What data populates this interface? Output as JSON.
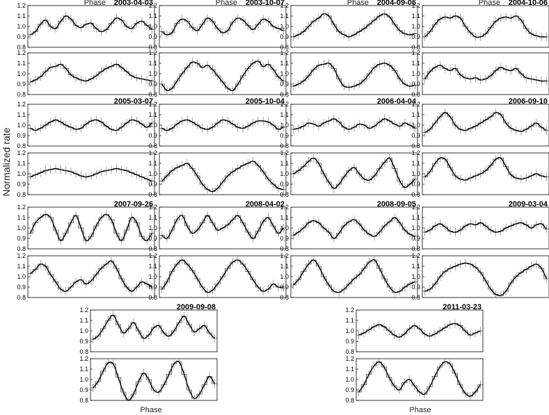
{
  "figure": {
    "ylabel": "Normalized rate",
    "xlabel": "Phase"
  },
  "chart_data": {
    "type": "line",
    "ylabel": "Normalized rate",
    "xlabel": "Phase",
    "ylim_top": [
      0.8,
      1.2
    ],
    "ylim_bottom": [
      0.8,
      1.2
    ],
    "yticks": [
      0.8,
      0.9,
      1.0,
      1.1,
      1.2
    ],
    "panels": [
      {
        "date": "2003-04-03",
        "show_phase": true,
        "top": [
          0.92,
          0.95,
          1.02,
          1.06,
          1.0,
          0.98,
          1.05,
          1.1,
          1.07,
          1.01,
          0.99,
          1.02,
          1.03,
          0.98,
          0.95,
          0.97,
          1.03,
          1.08,
          1.06,
          1.0,
          0.98,
          1.03,
          1.05,
          1.01,
          0.97
        ],
        "bottom": [
          0.92,
          0.94,
          0.97,
          1.02,
          1.06,
          1.07,
          1.09,
          1.05,
          0.99,
          0.96,
          0.94,
          0.93,
          0.95,
          0.98,
          1.02,
          1.05,
          1.07,
          1.09,
          1.06,
          1.02,
          0.98,
          0.96,
          0.95,
          0.94,
          0.93
        ]
      },
      {
        "date": "2003-10-07",
        "show_phase": true,
        "top": [
          0.95,
          0.92,
          0.94,
          1.03,
          1.07,
          1.05,
          0.99,
          0.96,
          1.02,
          1.08,
          1.05,
          0.98,
          0.94,
          0.96,
          1.04,
          1.08,
          1.06,
          1.01,
          0.97,
          1.02,
          1.07,
          1.05,
          1.0,
          0.98,
          0.96
        ],
        "bottom": [
          0.9,
          0.84,
          0.86,
          0.93,
          1.0,
          1.06,
          1.11,
          1.1,
          1.06,
          1.08,
          1.04,
          0.98,
          0.92,
          0.86,
          0.84,
          0.9,
          0.98,
          1.05,
          1.1,
          1.12,
          1.07,
          1.09,
          1.04,
          0.97,
          0.93
        ]
      },
      {
        "date": "2004-09-06",
        "show_phase": true,
        "top": [
          0.9,
          0.92,
          0.95,
          1.0,
          1.05,
          1.08,
          1.12,
          1.1,
          1.02,
          0.95,
          0.92,
          0.9,
          0.92,
          0.95,
          0.98,
          1.02,
          1.06,
          1.1,
          1.12,
          1.09,
          1.02,
          0.96,
          0.93,
          0.92,
          0.93
        ],
        "bottom": [
          0.88,
          0.9,
          0.93,
          0.98,
          1.04,
          1.08,
          1.09,
          1.1,
          1.05,
          0.95,
          0.88,
          0.87,
          0.88,
          0.9,
          0.94,
          1.0,
          1.06,
          1.09,
          1.1,
          1.08,
          1.03,
          0.95,
          0.9,
          0.88,
          0.89
        ]
      },
      {
        "date": "2004-10-06",
        "show_phase": true,
        "top": [
          0.9,
          0.95,
          1.02,
          1.07,
          1.09,
          1.08,
          1.1,
          1.08,
          1.0,
          0.94,
          0.9,
          0.9,
          0.93,
          0.99,
          1.05,
          1.08,
          1.09,
          1.08,
          1.1,
          1.06,
          0.98,
          0.93,
          0.91,
          0.9,
          0.9
        ],
        "bottom": [
          0.95,
          1.02,
          1.06,
          1.08,
          1.05,
          1.03,
          1.05,
          0.99,
          0.96,
          0.95,
          0.96,
          0.94,
          0.95,
          0.98,
          1.03,
          1.06,
          1.04,
          1.03,
          1.05,
          1.0,
          0.96,
          0.95,
          0.94,
          0.93,
          0.93
        ]
      },
      {
        "date": "2005-03-07",
        "show_phase": false,
        "top": [
          0.97,
          0.95,
          0.97,
          1.0,
          1.03,
          1.05,
          1.03,
          1.0,
          0.98,
          0.96,
          0.97,
          1.01,
          1.04,
          1.05,
          1.03,
          0.99,
          0.96,
          0.95,
          0.98,
          1.02,
          1.05,
          1.04,
          1.01,
          0.98,
          1.02
        ],
        "bottom": [
          0.97,
          0.99,
          1.01,
          1.03,
          1.04,
          1.05,
          1.04,
          1.03,
          1.02,
          1.0,
          0.98,
          0.97,
          0.98,
          1.0,
          1.02,
          1.03,
          1.04,
          1.05,
          1.04,
          1.03,
          1.01,
          0.99,
          0.97,
          0.95,
          0.93
        ]
      },
      {
        "date": "2005-10-04",
        "show_phase": false,
        "top": [
          0.97,
          0.95,
          0.97,
          1.01,
          1.04,
          1.05,
          1.03,
          1.0,
          0.97,
          0.96,
          0.98,
          1.02,
          1.05,
          1.04,
          1.01,
          0.98,
          0.97,
          0.99,
          1.02,
          1.04,
          1.04,
          1.03,
          1.0,
          0.96,
          0.98
        ],
        "bottom": [
          0.93,
          0.98,
          1.03,
          1.06,
          1.08,
          1.1,
          1.05,
          0.98,
          0.9,
          0.85,
          0.83,
          0.86,
          0.92,
          0.98,
          1.02,
          1.05,
          1.08,
          1.1,
          1.12,
          1.08,
          1.02,
          0.95,
          0.9,
          0.86,
          0.85
        ]
      },
      {
        "date": "2006-04-04",
        "show_phase": false,
        "top": [
          0.96,
          0.97,
          0.99,
          1.02,
          1.01,
          0.99,
          1.02,
          1.04,
          1.06,
          1.03,
          0.98,
          0.96,
          0.98,
          1.01,
          1.0,
          0.97,
          0.99,
          1.03,
          1.06,
          1.04,
          1.01,
          0.99,
          1.02,
          1.0,
          0.97
        ],
        "bottom": [
          1.0,
          1.03,
          1.07,
          1.12,
          1.15,
          1.1,
          1.0,
          0.92,
          0.86,
          0.9,
          0.97,
          1.03,
          1.06,
          1.0,
          0.95,
          0.94,
          0.98,
          1.05,
          1.11,
          1.15,
          1.05,
          0.93,
          0.87,
          0.9,
          0.95
        ]
      },
      {
        "date": "2006-09-10",
        "show_phase": false,
        "top": [
          0.93,
          0.96,
          1.02,
          1.08,
          1.12,
          1.08,
          1.0,
          0.96,
          0.95,
          0.97,
          0.99,
          1.02,
          1.05,
          1.08,
          1.12,
          1.1,
          1.02,
          0.97,
          0.95,
          0.94,
          0.96,
          0.99,
          1.02,
          0.98,
          0.95
        ],
        "bottom": [
          0.97,
          1.02,
          1.1,
          1.15,
          1.14,
          1.06,
          0.98,
          0.95,
          0.94,
          0.96,
          0.98,
          1.0,
          1.03,
          1.08,
          1.14,
          1.15,
          1.07,
          0.99,
          0.96,
          0.95,
          0.96,
          0.98,
          1.0,
          0.98,
          0.97
        ]
      },
      {
        "date": "2007-09-26",
        "show_phase": false,
        "top": [
          0.95,
          1.05,
          1.1,
          1.13,
          1.1,
          0.98,
          0.88,
          0.95,
          1.05,
          1.12,
          1.0,
          0.88,
          0.92,
          1.02,
          1.1,
          1.13,
          1.08,
          0.95,
          0.88,
          0.98,
          1.1,
          1.05,
          0.92,
          0.88,
          0.95
        ],
        "bottom": [
          1.03,
          1.07,
          1.12,
          1.1,
          1.02,
          0.95,
          0.88,
          0.86,
          0.9,
          0.95,
          0.97,
          0.93,
          0.96,
          1.02,
          1.08,
          1.12,
          1.15,
          1.08,
          0.98,
          0.9,
          0.86,
          0.9,
          0.95,
          0.93,
          0.9
        ]
      },
      {
        "date": "2008-04-02",
        "show_phase": false,
        "top": [
          0.93,
          0.9,
          0.98,
          1.08,
          1.12,
          1.02,
          0.95,
          0.98,
          1.05,
          1.12,
          1.05,
          0.98,
          1.0,
          1.03,
          1.08,
          1.12,
          1.05,
          0.96,
          0.9,
          0.97,
          1.06,
          1.1,
          1.02,
          0.95,
          1.0
        ],
        "bottom": [
          0.88,
          0.95,
          1.05,
          1.12,
          1.16,
          1.12,
          1.06,
          0.98,
          0.9,
          0.85,
          0.87,
          0.93,
          1.0,
          1.08,
          1.14,
          1.16,
          1.12,
          1.05,
          0.97,
          0.9,
          0.86,
          0.88,
          0.93,
          0.9,
          0.9
        ]
      },
      {
        "date": "2008-09-05",
        "show_phase": false,
        "top": [
          0.93,
          0.96,
          1.0,
          1.05,
          1.07,
          1.05,
          1.0,
          0.96,
          0.9,
          0.95,
          1.02,
          1.06,
          1.08,
          1.04,
          0.98,
          0.94,
          0.92,
          0.96,
          1.02,
          1.06,
          1.1,
          1.05,
          0.98,
          0.94,
          0.92
        ],
        "bottom": [
          0.92,
          0.97,
          1.05,
          1.12,
          1.16,
          1.1,
          1.0,
          0.92,
          0.86,
          0.85,
          0.88,
          0.93,
          0.98,
          1.02,
          1.08,
          1.14,
          1.16,
          1.08,
          0.98,
          0.9,
          0.85,
          0.86,
          0.9,
          0.93,
          0.95
        ]
      },
      {
        "date": "2009-03-04",
        "show_phase": false,
        "top": [
          0.96,
          0.98,
          1.02,
          1.04,
          1.01,
          0.97,
          0.96,
          0.98,
          1.02,
          1.04,
          1.03,
          1.05,
          1.02,
          0.98,
          0.96,
          0.97,
          1.0,
          1.02,
          1.04,
          1.05,
          1.03,
          1.0,
          1.03,
          1.04,
          0.99
        ],
        "bottom": [
          0.86,
          0.88,
          0.93,
          1.0,
          1.05,
          1.08,
          1.1,
          1.12,
          1.13,
          1.12,
          1.09,
          1.04,
          0.96,
          0.88,
          0.83,
          0.82,
          0.86,
          0.94,
          1.0,
          1.04,
          1.07,
          1.1,
          1.12,
          1.08,
          0.98
        ]
      },
      {
        "date": "2009-09-08",
        "show_phase": false,
        "top": [
          0.92,
          0.95,
          1.02,
          1.1,
          1.15,
          1.06,
          0.98,
          1.02,
          1.08,
          1.0,
          0.93,
          0.96,
          1.03,
          1.05,
          0.98,
          0.95,
          1.0,
          1.08,
          1.14,
          1.06,
          0.99,
          1.02,
          1.05,
          0.98,
          0.93
        ],
        "bottom": [
          0.92,
          0.98,
          1.08,
          1.16,
          1.15,
          1.02,
          0.88,
          0.8,
          0.86,
          0.98,
          1.06,
          1.0,
          0.9,
          0.88,
          0.95,
          1.05,
          1.15,
          1.17,
          1.05,
          0.9,
          0.82,
          0.86,
          0.95,
          1.03,
          0.96
        ]
      },
      {
        "date": "2011-03-23",
        "show_phase": false,
        "top": [
          0.96,
          0.98,
          1.01,
          1.04,
          1.06,
          1.04,
          1.0,
          0.96,
          0.94,
          0.97,
          1.02,
          1.05,
          1.02,
          0.97,
          0.95,
          0.97,
          1.0,
          1.03,
          1.06,
          1.07,
          1.05,
          1.0,
          0.96,
          0.98,
          1.0
        ],
        "bottom": [
          0.88,
          0.95,
          1.05,
          1.13,
          1.17,
          1.12,
          1.02,
          0.94,
          0.9,
          0.97,
          1.0,
          0.94,
          0.88,
          0.86,
          0.93,
          1.03,
          1.12,
          1.17,
          1.15,
          1.06,
          0.95,
          0.87,
          0.84,
          0.88,
          0.95
        ]
      }
    ]
  }
}
